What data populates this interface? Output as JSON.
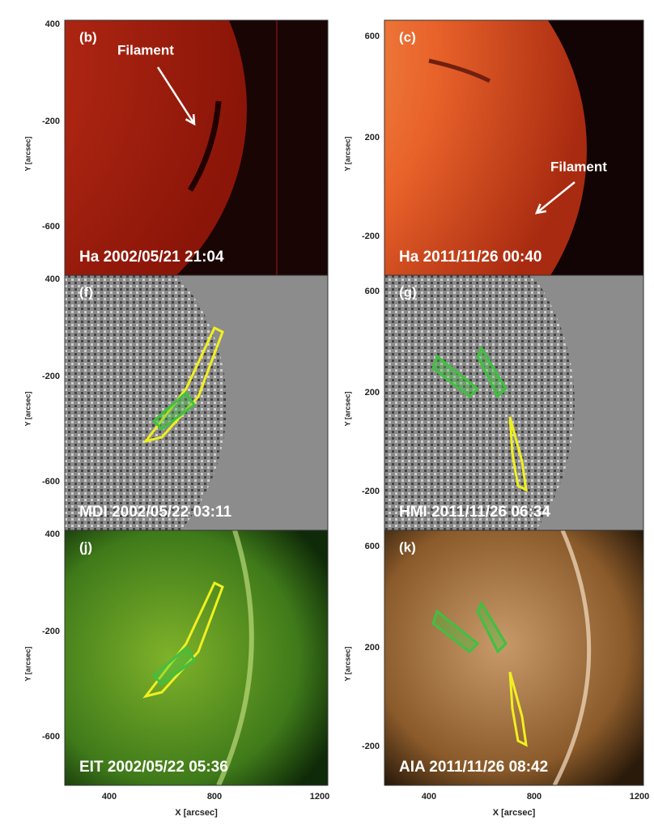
{
  "panels": [
    {
      "letter": "(b)",
      "caption": "Ha 2002/05/21 21:04",
      "annotation": "Filament",
      "y_axis_label": "Y [arcsec]",
      "y_ticks": [
        "400",
        "-200",
        "-600"
      ]
    },
    {
      "letter": "(c)",
      "caption": "Ha 2011/11/26 00:40",
      "annotation": "Filament",
      "y_axis_label": "Y [arcsec]",
      "y_ticks": [
        "600",
        "200",
        "-200"
      ]
    },
    {
      "letter": "(f)",
      "caption": "MDI 2002/05/22 03:11",
      "y_axis_label": "Y [arcsec]",
      "y_ticks": [
        "400",
        "-200",
        "-600"
      ]
    },
    {
      "letter": "(g)",
      "caption": "HMI 2011/11/26 06:34",
      "y_axis_label": "Y [arcsec]",
      "y_ticks": [
        "600",
        "200",
        "-200"
      ]
    },
    {
      "letter": "(j)",
      "caption": "EIT 2002/05/22 05:36",
      "y_axis_label": "Y [arcsec]",
      "y_ticks": [
        "400",
        "-200",
        "-600"
      ]
    },
    {
      "letter": "(k)",
      "caption": "AIA 2011/11/26 08:42",
      "y_axis_label": "Y [arcsec]",
      "y_ticks": [
        "600",
        "200",
        "-200"
      ]
    }
  ],
  "columns": [
    {
      "x_axis_label": "X [arcsec]",
      "x_ticks": [
        "400",
        "800",
        "1200"
      ]
    },
    {
      "x_axis_label": "X [arcsec]",
      "x_ticks": [
        "400",
        "800",
        "1200"
      ]
    }
  ]
}
